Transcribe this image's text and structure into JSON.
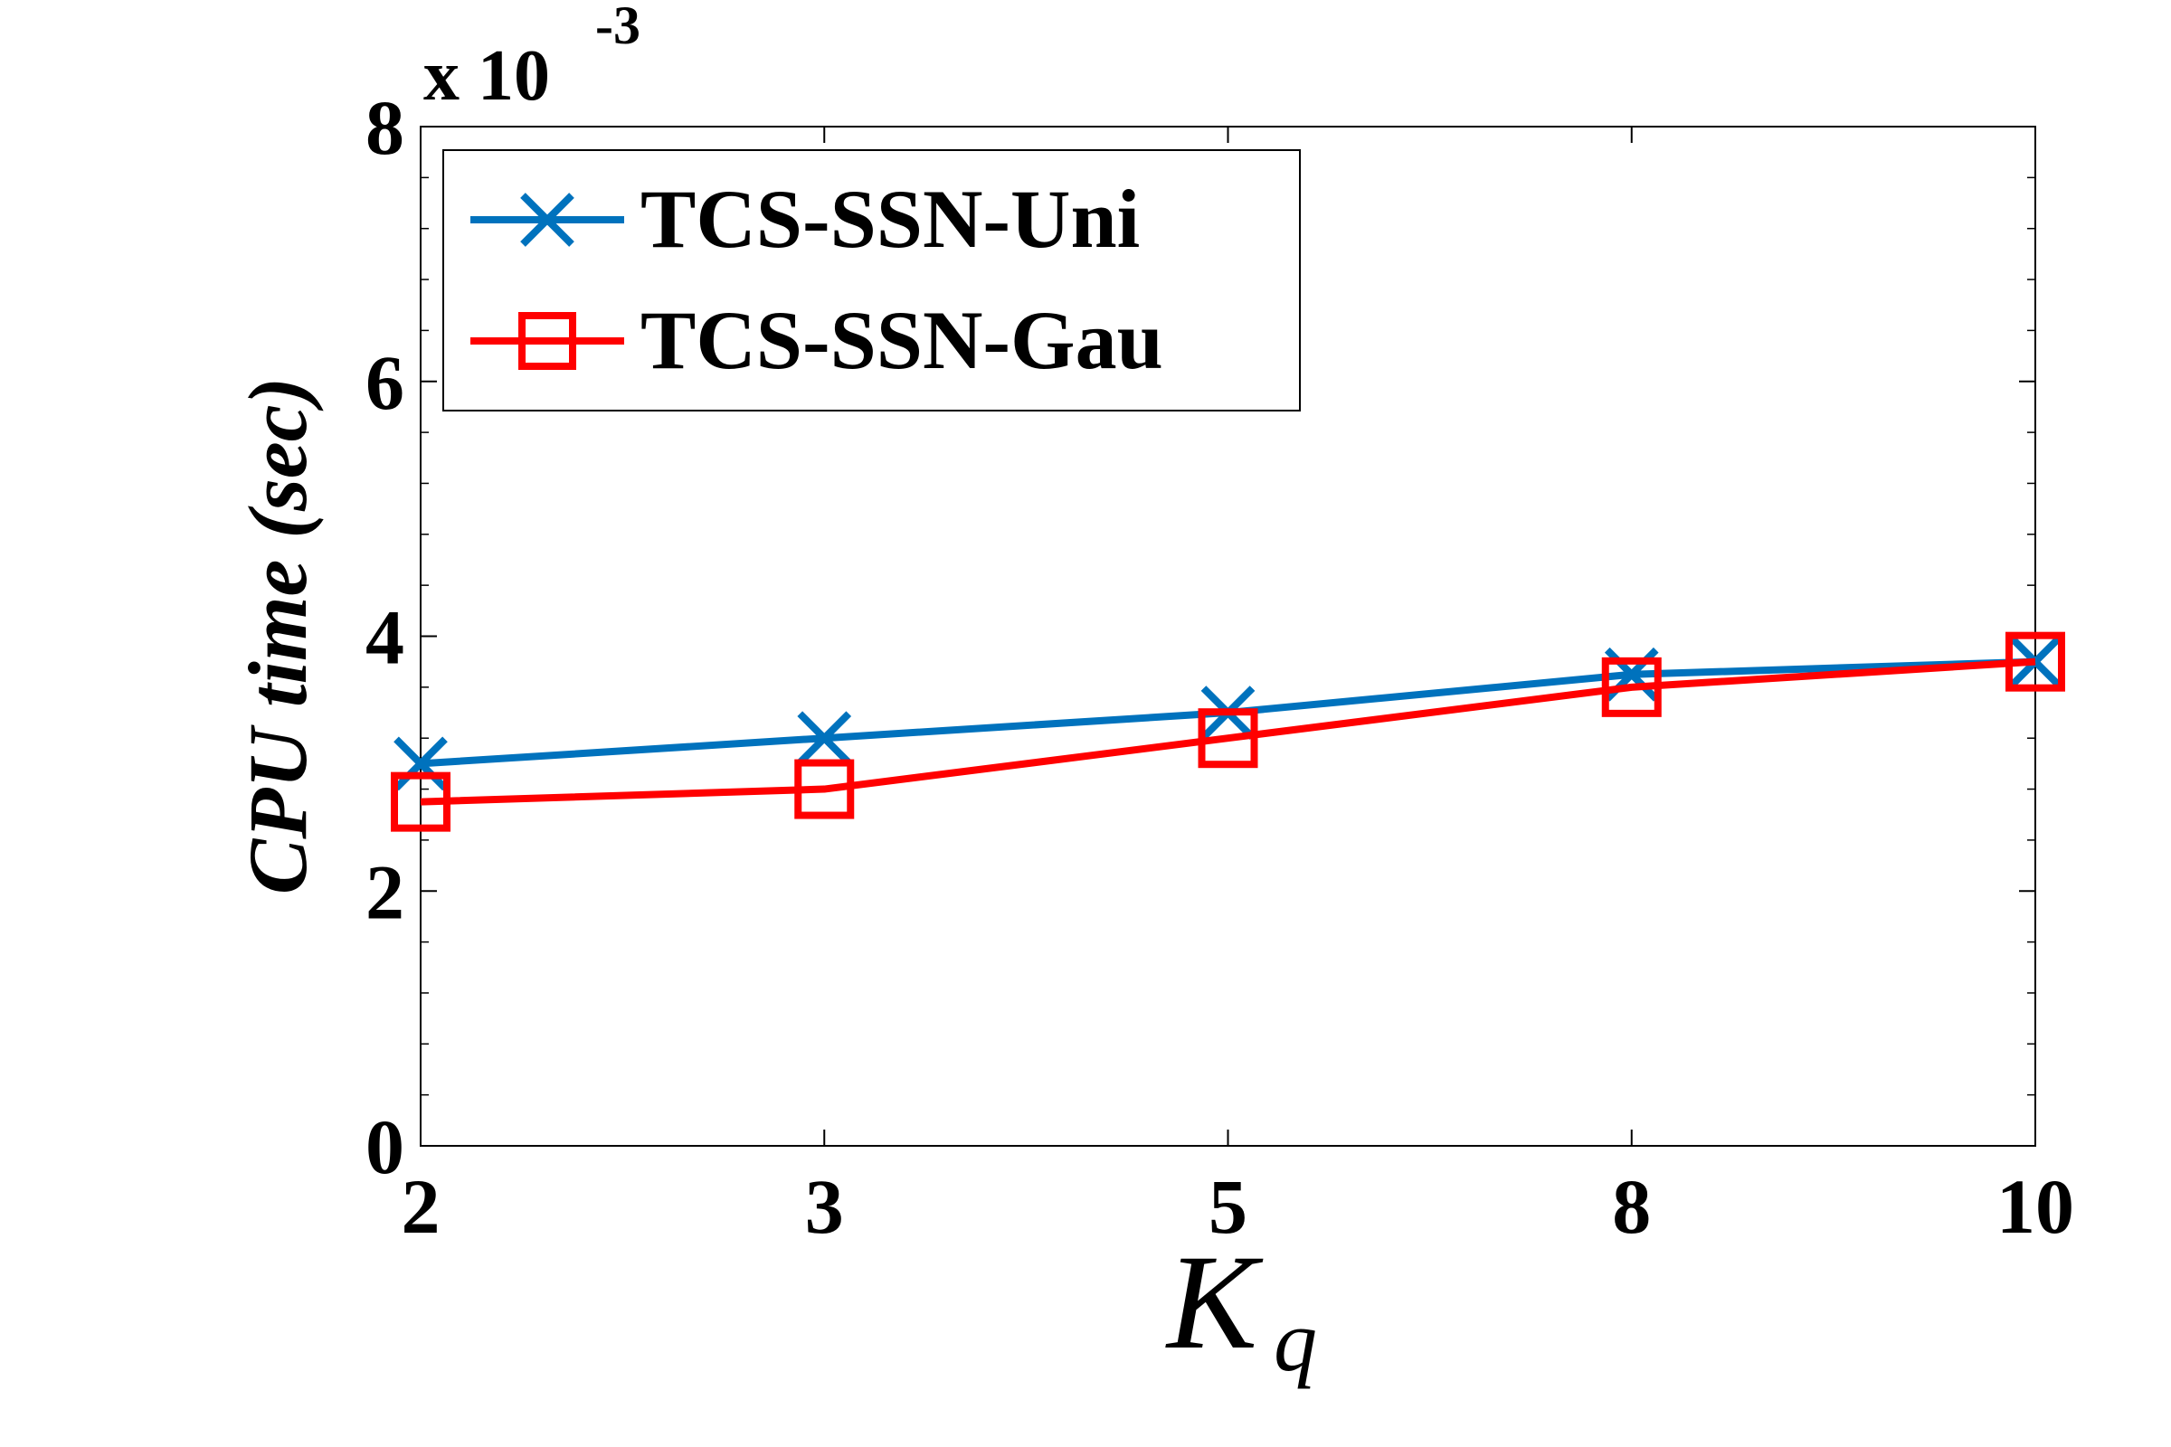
{
  "chart_data": {
    "type": "line",
    "x": [
      2,
      3,
      5,
      8,
      10
    ],
    "categories": [
      "2",
      "3",
      "5",
      "8",
      "10"
    ],
    "xlabel": "K",
    "xlabel_subscript": "q",
    "ylabel": "CPU time (sec)",
    "yscale_prefix": "x 10",
    "yscale_exponent": "-3",
    "ylim": [
      0,
      8
    ],
    "yticks": [
      "0",
      "2",
      "4",
      "6",
      "8"
    ],
    "grid": false,
    "legend_position": "top-left",
    "series": [
      {
        "name": "TCS-SSN-Uni",
        "color": "#0072BD",
        "marker": "x",
        "values": [
          3.0,
          3.2,
          3.4,
          3.7,
          3.8
        ]
      },
      {
        "name": "TCS-SSN-Gau",
        "color": "#FF0000",
        "marker": "square",
        "values": [
          2.7,
          2.8,
          3.2,
          3.6,
          3.8
        ]
      }
    ]
  }
}
